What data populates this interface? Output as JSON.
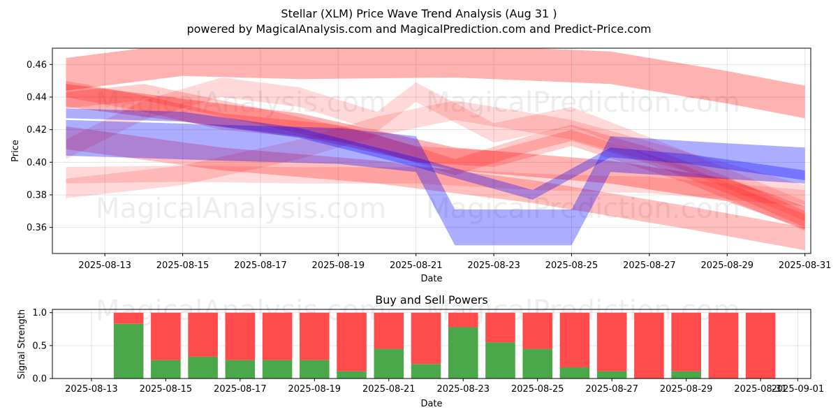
{
  "title": "Stellar (XLM) Price Wave Trend Analysis (Aug 31 )",
  "subtitle": "powered by MagicalAnalysis.com and MagicalPrediction.com and Predict-Price.com",
  "watermarks": [
    "MagicalAnalysis.com",
    "MagicalPrediction.com"
  ],
  "colors": {
    "bearish_band": "#ff0000",
    "bullish_band": "#0000ff",
    "buy": "#4aa84a",
    "sell": "#ff4b4b",
    "grid": "#b0b0b0"
  },
  "chart_data": [
    {
      "type": "area",
      "title": "",
      "xlabel": "Date",
      "ylabel": "Price",
      "grid": true,
      "xlim": [
        "2025-08-12",
        "2025-09-01"
      ],
      "ylim": [
        0.344,
        0.47
      ],
      "x_ticks": [
        "2025-08-13",
        "2025-08-15",
        "2025-08-17",
        "2025-08-19",
        "2025-08-21",
        "2025-08-23",
        "2025-08-25",
        "2025-08-27",
        "2025-08-29",
        "2025-08-31"
      ],
      "y_ticks": [
        0.36,
        0.38,
        0.4,
        0.42,
        0.44,
        0.46
      ],
      "series": [
        {
          "color": "red",
          "opacity": 0.3,
          "points": [
            [
              "2025-08-12",
              0.454
            ],
            [
              "2025-08-15",
              0.463
            ],
            [
              "2025-08-18",
              0.461
            ],
            [
              "2025-08-22",
              0.462
            ],
            [
              "2025-08-26",
              0.458
            ],
            [
              "2025-08-29",
              0.446
            ],
            [
              "2025-08-31",
              0.437
            ]
          ],
          "width": 0.02
        },
        {
          "color": "red",
          "opacity": 0.3,
          "points": [
            [
              "2025-08-12",
              0.441
            ],
            [
              "2025-08-18",
              0.423
            ],
            [
              "2025-08-22",
              0.402
            ],
            [
              "2025-08-26",
              0.394
            ],
            [
              "2025-08-29",
              0.383
            ],
            [
              "2025-08-31",
              0.366
            ]
          ],
          "width": 0.014
        },
        {
          "color": "red",
          "opacity": 0.25,
          "points": [
            [
              "2025-08-12",
              0.415
            ],
            [
              "2025-08-16",
              0.402
            ],
            [
              "2025-08-20",
              0.394
            ],
            [
              "2025-08-24",
              0.382
            ],
            [
              "2025-08-28",
              0.366
            ],
            [
              "2025-08-31",
              0.353
            ]
          ],
          "width": 0.014
        },
        {
          "color": "red",
          "opacity": 0.2,
          "points": [
            [
              "2025-08-12",
              0.438
            ],
            [
              "2025-08-14",
              0.443
            ],
            [
              "2025-08-17",
              0.428
            ],
            [
              "2025-08-20",
              0.412
            ],
            [
              "2025-08-22",
              0.397
            ],
            [
              "2025-08-24",
              0.412
            ],
            [
              "2025-08-25",
              0.418
            ],
            [
              "2025-08-27",
              0.404
            ],
            [
              "2025-08-29",
              0.386
            ],
            [
              "2025-08-31",
              0.365
            ]
          ],
          "width": 0.01
        },
        {
          "color": "red",
          "opacity": 0.2,
          "points": [
            [
              "2025-08-12",
              0.445
            ],
            [
              "2025-08-14",
              0.436
            ],
            [
              "2025-08-16",
              0.425
            ],
            [
              "2025-08-19",
              0.418
            ],
            [
              "2025-08-21",
              0.405
            ],
            [
              "2025-08-23",
              0.402
            ],
            [
              "2025-08-25",
              0.415
            ],
            [
              "2025-08-28",
              0.392
            ],
            [
              "2025-08-31",
              0.363
            ]
          ],
          "width": 0.01
        },
        {
          "color": "red",
          "opacity": 0.15,
          "points": [
            [
              "2025-08-12",
              0.384
            ],
            [
              "2025-08-15",
              0.392
            ],
            [
              "2025-08-18",
              0.408
            ],
            [
              "2025-08-20",
              0.422
            ],
            [
              "2025-08-22",
              0.432
            ],
            [
              "2025-08-25",
              0.42
            ],
            [
              "2025-08-28",
              0.4
            ],
            [
              "2025-08-31",
              0.38
            ]
          ],
          "width": 0.012
        },
        {
          "color": "red",
          "opacity": 0.15,
          "points": [
            [
              "2025-08-12",
              0.392
            ],
            [
              "2025-08-15",
              0.393
            ],
            [
              "2025-08-18",
              0.392
            ],
            [
              "2025-08-21",
              0.392
            ],
            [
              "2025-08-24",
              0.388
            ],
            [
              "2025-08-27",
              0.386
            ],
            [
              "2025-08-31",
              0.378
            ]
          ],
          "width": 0.01
        },
        {
          "color": "red",
          "opacity": 0.15,
          "points": [
            [
              "2025-08-12",
              0.408
            ],
            [
              "2025-08-14",
              0.432
            ],
            [
              "2025-08-16",
              0.446
            ],
            [
              "2025-08-18",
              0.44
            ],
            [
              "2025-08-20",
              0.425
            ],
            [
              "2025-08-21",
              0.443
            ],
            [
              "2025-08-23",
              0.418
            ],
            [
              "2025-08-25",
              0.428
            ],
            [
              "2025-08-28",
              0.4
            ],
            [
              "2025-08-31",
              0.37
            ]
          ],
          "width": 0.012
        },
        {
          "color": "blue",
          "opacity": 0.32,
          "points": [
            [
              "2025-08-12",
              0.415
            ],
            [
              "2025-08-16",
              0.412
            ],
            [
              "2025-08-19",
              0.41
            ],
            [
              "2025-08-21",
              0.405
            ],
            [
              "2025-08-22",
              0.36
            ],
            [
              "2025-08-25",
              0.36
            ],
            [
              "2025-08-26",
              0.405
            ],
            [
              "2025-08-28",
              0.402
            ],
            [
              "2025-08-31",
              0.398
            ]
          ],
          "width": 0.022
        },
        {
          "color": "blue",
          "opacity": 0.32,
          "points": [
            [
              "2025-08-12",
              0.43
            ],
            [
              "2025-08-15",
              0.428
            ],
            [
              "2025-08-18",
              0.418
            ],
            [
              "2025-08-21",
              0.4
            ],
            [
              "2025-08-24",
              0.38
            ],
            [
              "2025-08-26",
              0.406
            ],
            [
              "2025-08-28",
              0.402
            ],
            [
              "2025-08-31",
              0.392
            ]
          ],
          "width": 0.006
        }
      ]
    },
    {
      "type": "bar",
      "title": "Buy and Sell Powers",
      "xlabel": "Date",
      "ylabel": "Signal Strength",
      "grid": true,
      "xlim": [
        "2025-08-12",
        "2025-09-01"
      ],
      "ylim": [
        0,
        1.05
      ],
      "x_ticks": [
        "2025-08-13",
        "2025-08-15",
        "2025-08-17",
        "2025-08-19",
        "2025-08-21",
        "2025-08-23",
        "2025-08-25",
        "2025-08-27",
        "2025-08-29",
        "2025-08-31",
        "2025-09-01"
      ],
      "y_ticks": [
        "0.0",
        "0.5",
        "1.0"
      ],
      "categories": [
        "2025-08-14",
        "2025-08-15",
        "2025-08-16",
        "2025-08-17",
        "2025-08-18",
        "2025-08-19",
        "2025-08-20",
        "2025-08-21",
        "2025-08-22",
        "2025-08-23",
        "2025-08-24",
        "2025-08-25",
        "2025-08-26",
        "2025-08-27",
        "2025-08-28",
        "2025-08-29",
        "2025-08-30",
        "2025-08-31"
      ],
      "series": [
        {
          "name": "Buy",
          "values": [
            0.83,
            0.28,
            0.33,
            0.28,
            0.28,
            0.28,
            0.11,
            0.45,
            0.22,
            0.78,
            0.55,
            0.45,
            0.17,
            0.11,
            0.0,
            0.11,
            0.0,
            0.0
          ]
        },
        {
          "name": "Sell",
          "values": [
            0.17,
            0.72,
            0.67,
            0.72,
            0.72,
            0.72,
            0.89,
            0.55,
            0.78,
            0.22,
            0.45,
            0.55,
            0.83,
            0.89,
            1.0,
            0.89,
            1.0,
            1.0
          ]
        }
      ]
    }
  ]
}
